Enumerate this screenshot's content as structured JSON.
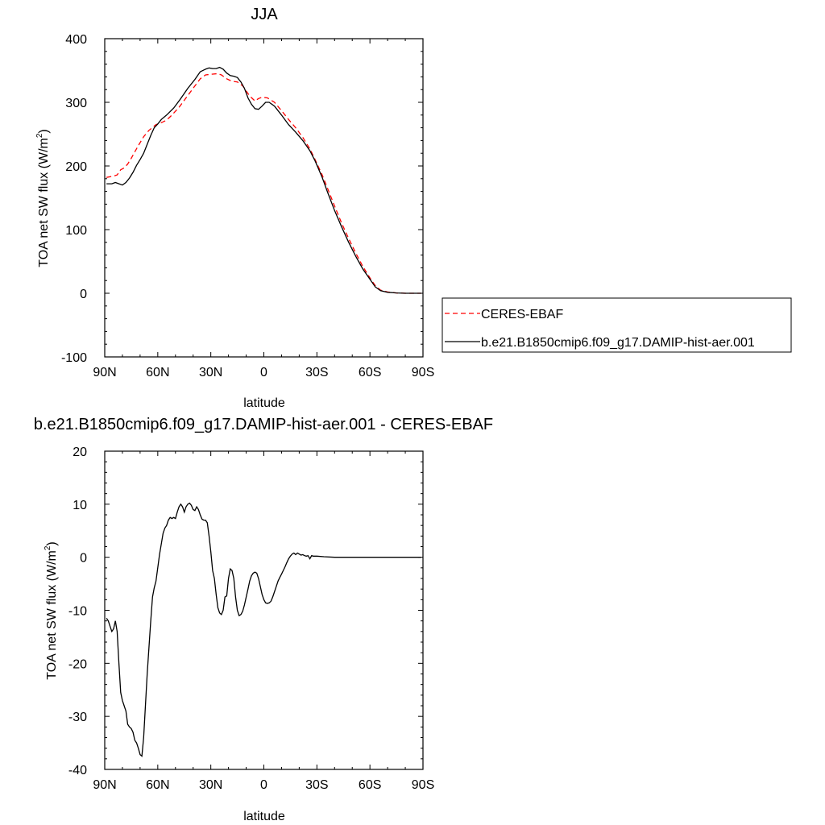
{
  "chart_data": [
    {
      "type": "line",
      "title": "JJA",
      "xlabel": "latitude",
      "ylabel": "TOA net SW flux (W/m",
      "ylabel_sup": "2",
      "ylabel_close": ")",
      "xlim": [
        90,
        -90
      ],
      "ylim": [
        -100,
        400
      ],
      "yticks": [
        -100,
        0,
        100,
        200,
        300,
        400
      ],
      "xticks": [
        {
          "value": 90,
          "label": "90N"
        },
        {
          "value": 60,
          "label": "60N"
        },
        {
          "value": 30,
          "label": "30N"
        },
        {
          "value": 0,
          "label": "0"
        },
        {
          "value": -30,
          "label": "30S"
        },
        {
          "value": -60,
          "label": "60S"
        },
        {
          "value": -90,
          "label": "90S"
        }
      ],
      "grid": false,
      "legend": "right",
      "series": [
        {
          "name": "CERES-EBAF",
          "color": "#ff0000",
          "dash": true,
          "points": [
            [
              89,
              182
            ],
            [
              85,
              184
            ],
            [
              83,
              186
            ],
            [
              81,
              194
            ],
            [
              79,
              197
            ],
            [
              77,
              203
            ],
            [
              75,
              212
            ],
            [
              73,
              222
            ],
            [
              71,
              232
            ],
            [
              68,
              246
            ],
            [
              65,
              256
            ],
            [
              61,
              265
            ],
            [
              58,
              268
            ],
            [
              55,
              272
            ],
            [
              52,
              280
            ],
            [
              48,
              292
            ],
            [
              44,
              307
            ],
            [
              40,
              322
            ],
            [
              36,
              337
            ],
            [
              33,
              343
            ],
            [
              30,
              344
            ],
            [
              26,
              345
            ],
            [
              24,
              343
            ],
            [
              21,
              337
            ],
            [
              18,
              333
            ],
            [
              15,
              332
            ],
            [
              12,
              326
            ],
            [
              8,
              310
            ],
            [
              5,
              302
            ],
            [
              3,
              306
            ],
            [
              1,
              308
            ],
            [
              -2,
              307
            ],
            [
              -6,
              300
            ],
            [
              -10,
              287
            ],
            [
              -14,
              273
            ],
            [
              -18,
              260
            ],
            [
              -22,
              245
            ],
            [
              -26,
              227
            ],
            [
              -29,
              210
            ],
            [
              -33,
              186
            ],
            [
              -36,
              165
            ],
            [
              -40,
              137
            ],
            [
              -44,
              110
            ],
            [
              -48,
              86
            ],
            [
              -52,
              63
            ],
            [
              -56,
              42
            ],
            [
              -60,
              24
            ],
            [
              -63,
              12
            ],
            [
              -66,
              5
            ],
            [
              -70,
              2
            ],
            [
              -75,
              0.5
            ],
            [
              -80,
              0
            ],
            [
              -85,
              0
            ],
            [
              -89,
              0
            ]
          ]
        },
        {
          "name": "b.e21.B1850cmip6.f09_g17.DAMIP-hist-aer.001",
          "color": "#000000",
          "dash": false,
          "points": [
            [
              89,
              172
            ],
            [
              86,
              172
            ],
            [
              84,
              174
            ],
            [
              82,
              172
            ],
            [
              80,
              170
            ],
            [
              78,
              174
            ],
            [
              76,
              181
            ],
            [
              74,
              190
            ],
            [
              72,
              201
            ],
            [
              70,
              210
            ],
            [
              68,
              220
            ],
            [
              66,
              234
            ],
            [
              64,
              248
            ],
            [
              62,
              260
            ],
            [
              60,
              266
            ],
            [
              58,
              273
            ],
            [
              55,
              280
            ],
            [
              51,
              291
            ],
            [
              47,
              306
            ],
            [
              43,
              322
            ],
            [
              39,
              336
            ],
            [
              36,
              348
            ],
            [
              33,
              352
            ],
            [
              31,
              354
            ],
            [
              29,
              353
            ],
            [
              27,
              353
            ],
            [
              25,
              355
            ],
            [
              23,
              352
            ],
            [
              21,
              346
            ],
            [
              19,
              342
            ],
            [
              17,
              341
            ],
            [
              15,
              339
            ],
            [
              13,
              332
            ],
            [
              11,
              322
            ],
            [
              9,
              307
            ],
            [
              7,
              297
            ],
            [
              5,
              290
            ],
            [
              3,
              289
            ],
            [
              1,
              294
            ],
            [
              -1,
              300
            ],
            [
              -3,
              300
            ],
            [
              -6,
              294
            ],
            [
              -10,
              280
            ],
            [
              -14,
              265
            ],
            [
              -18,
              253
            ],
            [
              -22,
              240
            ],
            [
              -26,
              224
            ],
            [
              -29,
              208
            ],
            [
              -33,
              182
            ],
            [
              -36,
              159
            ],
            [
              -40,
              130
            ],
            [
              -44,
              104
            ],
            [
              -48,
              80
            ],
            [
              -52,
              58
            ],
            [
              -56,
              38
            ],
            [
              -60,
              22
            ],
            [
              -63,
              10
            ],
            [
              -66,
              4
            ],
            [
              -70,
              1.5
            ],
            [
              -75,
              0.5
            ],
            [
              -80,
              0
            ],
            [
              -85,
              0
            ],
            [
              -89,
              0
            ]
          ]
        }
      ]
    },
    {
      "type": "line",
      "title": "b.e21.B1850cmip6.f09_g17.DAMIP-hist-aer.001 - CERES-EBAF",
      "xlabel": "latitude",
      "ylabel": "TOA net SW flux (W/m",
      "ylabel_sup": "2",
      "ylabel_close": ")",
      "xlim": [
        90,
        -90
      ],
      "ylim": [
        -40,
        20
      ],
      "yticks": [
        -40,
        -30,
        -20,
        -10,
        0,
        10,
        20
      ],
      "xticks": [
        {
          "value": 90,
          "label": "90N"
        },
        {
          "value": 60,
          "label": "60N"
        },
        {
          "value": 30,
          "label": "30N"
        },
        {
          "value": 0,
          "label": "0"
        },
        {
          "value": -30,
          "label": "30S"
        },
        {
          "value": -60,
          "label": "60S"
        },
        {
          "value": -90,
          "label": "90S"
        }
      ],
      "grid": false,
      "series": [
        {
          "color": "#000000",
          "dash": false,
          "points": [
            [
              89,
              -11.5
            ],
            [
              88,
              -12
            ],
            [
              87,
              -13
            ],
            [
              86,
              -14
            ],
            [
              85,
              -13.5
            ],
            [
              84,
              -12
            ],
            [
              83,
              -14
            ],
            [
              82,
              -20
            ],
            [
              81,
              -25.5
            ],
            [
              80,
              -27
            ],
            [
              79,
              -28
            ],
            [
              78,
              -29
            ],
            [
              77,
              -31.5
            ],
            [
              76,
              -32
            ],
            [
              75,
              -32.3
            ],
            [
              74,
              -33
            ],
            [
              73,
              -34.5
            ],
            [
              72,
              -35
            ],
            [
              71,
              -36
            ],
            [
              70,
              -37.2
            ],
            [
              69,
              -37.5
            ],
            [
              68,
              -34
            ],
            [
              67,
              -28
            ],
            [
              66,
              -22
            ],
            [
              65,
              -17
            ],
            [
              64,
              -12
            ],
            [
              63,
              -7.5
            ],
            [
              62,
              -5.8
            ],
            [
              61,
              -4.5
            ],
            [
              60,
              -2
            ],
            [
              59,
              0.5
            ],
            [
              58,
              2.5
            ],
            [
              57,
              4.5
            ],
            [
              56,
              5.5
            ],
            [
              55,
              6
            ],
            [
              54,
              7
            ],
            [
              53,
              7.5
            ],
            [
              52,
              7.3
            ],
            [
              51,
              7.5
            ],
            [
              50,
              7.3
            ],
            [
              49,
              8.5
            ],
            [
              48,
              9.5
            ],
            [
              47,
              10
            ],
            [
              46,
              9.5
            ],
            [
              45,
              8.5
            ],
            [
              44,
              9.5
            ],
            [
              43,
              10
            ],
            [
              42,
              10.2
            ],
            [
              41,
              9.8
            ],
            [
              40,
              9
            ],
            [
              39,
              8.8
            ],
            [
              38,
              9.5
            ],
            [
              37,
              9
            ],
            [
              36,
              8
            ],
            [
              35,
              7.2
            ],
            [
              34,
              7
            ],
            [
              33,
              7
            ],
            [
              32,
              6.5
            ],
            [
              31,
              4
            ],
            [
              30,
              1
            ],
            [
              29,
              -2.5
            ],
            [
              28,
              -4
            ],
            [
              27,
              -7
            ],
            [
              26,
              -9.5
            ],
            [
              25,
              -10.5
            ],
            [
              24,
              -10.8
            ],
            [
              23,
              -10
            ],
            [
              22,
              -7.5
            ],
            [
              21,
              -7.3
            ],
            [
              20,
              -4
            ],
            [
              19,
              -2.2
            ],
            [
              18,
              -2.5
            ],
            [
              17,
              -4
            ],
            [
              16,
              -7.5
            ],
            [
              15,
              -10
            ],
            [
              14,
              -11
            ],
            [
              13,
              -10.8
            ],
            [
              12,
              -10.2
            ],
            [
              11,
              -9
            ],
            [
              10,
              -7.5
            ],
            [
              9,
              -6
            ],
            [
              8,
              -4.5
            ],
            [
              7,
              -3.5
            ],
            [
              6,
              -3
            ],
            [
              5,
              -2.8
            ],
            [
              4,
              -3
            ],
            [
              3,
              -4
            ],
            [
              2,
              -5.5
            ],
            [
              1,
              -7
            ],
            [
              0,
              -8
            ],
            [
              -1,
              -8.6
            ],
            [
              -2,
              -8.7
            ],
            [
              -3,
              -8.6
            ],
            [
              -4,
              -8.3
            ],
            [
              -5,
              -7.5
            ],
            [
              -6,
              -6.5
            ],
            [
              -7,
              -5.5
            ],
            [
              -8,
              -4.5
            ],
            [
              -9,
              -3.8
            ],
            [
              -10,
              -3.2
            ],
            [
              -11,
              -2.5
            ],
            [
              -12,
              -1.8
            ],
            [
              -13,
              -1
            ],
            [
              -14,
              -0.3
            ],
            [
              -15,
              0.2
            ],
            [
              -16,
              0.6
            ],
            [
              -17,
              0.8
            ],
            [
              -18,
              0.5
            ],
            [
              -19,
              0.8
            ],
            [
              -20,
              0.6
            ],
            [
              -21,
              0.4
            ],
            [
              -22,
              0.5
            ],
            [
              -23,
              0.3
            ],
            [
              -24,
              0.2
            ],
            [
              -25,
              0.3
            ],
            [
              -26,
              -0.3
            ],
            [
              -27,
              0.3
            ],
            [
              -28,
              0.2
            ],
            [
              -30,
              0.2
            ],
            [
              -34,
              0.1
            ],
            [
              -40,
              0
            ],
            [
              -50,
              0
            ],
            [
              -60,
              0
            ],
            [
              -70,
              0
            ],
            [
              -80,
              0
            ],
            [
              -89,
              0
            ]
          ]
        }
      ]
    }
  ]
}
